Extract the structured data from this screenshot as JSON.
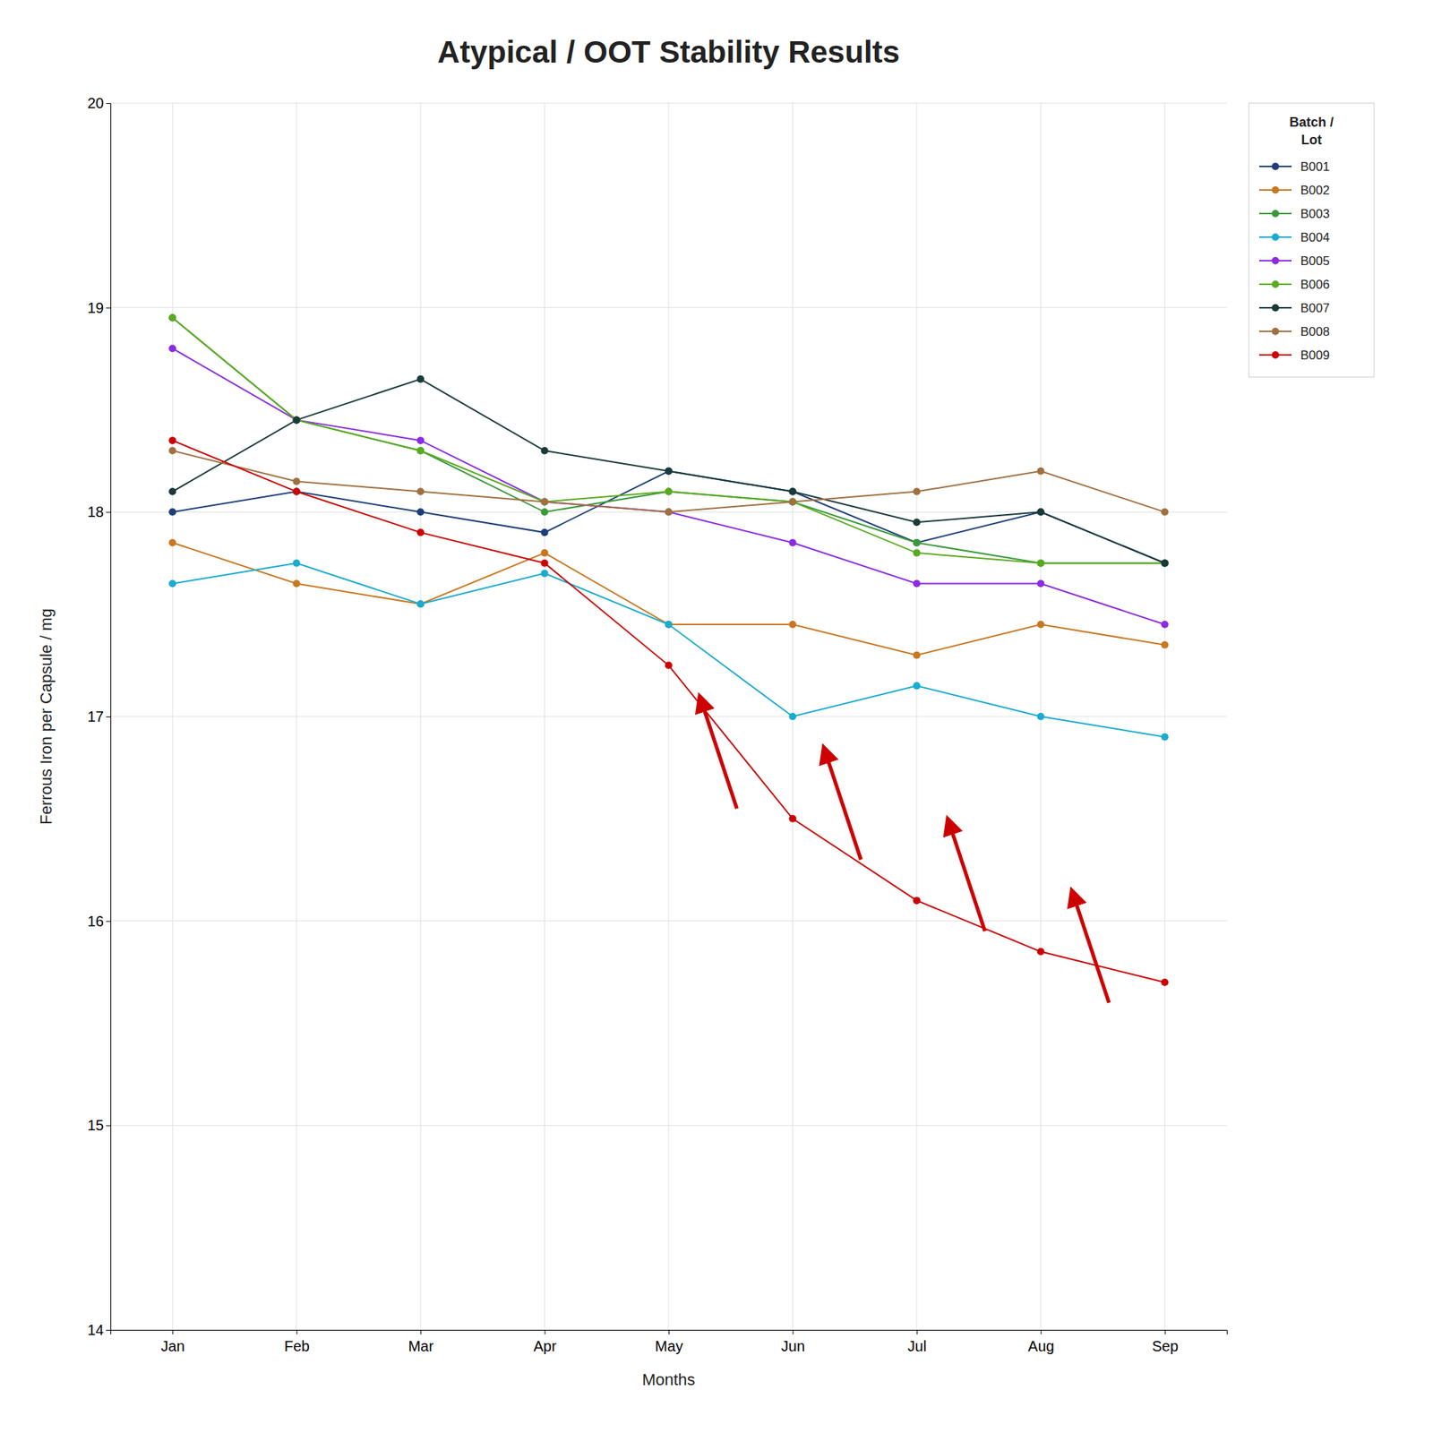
{
  "chart_data": {
    "type": "line",
    "title": "Atypical / OOT Stability Results",
    "xlabel": "Months",
    "ylabel": "Ferrous Iron per Capsule / mg",
    "categories": [
      "Jan",
      "Feb",
      "Mar",
      "Apr",
      "May",
      "Jun",
      "Jul",
      "Aug",
      "Sep"
    ],
    "ylim": [
      14,
      20
    ],
    "yticks": [
      14,
      15,
      16,
      17,
      18,
      19,
      20
    ],
    "grid": true,
    "legend": "right",
    "legend_title": "Batch /\nLot",
    "series": [
      {
        "name": "B001",
        "color": "#1c3f7a",
        "marker": "circle",
        "values": [
          18.0,
          18.1,
          18.0,
          17.9,
          18.2,
          18.1,
          17.85,
          18.0,
          17.75
        ]
      },
      {
        "name": "B002",
        "color": "#c87820",
        "marker": "circle",
        "values": [
          17.85,
          17.65,
          17.55,
          17.8,
          17.45,
          17.45,
          17.3,
          17.45,
          17.35
        ]
      },
      {
        "name": "B003",
        "color": "#3a9a3a",
        "marker": "circle",
        "values": [
          18.95,
          18.45,
          18.3,
          18.0,
          18.1,
          18.05,
          17.85,
          17.75,
          17.75
        ]
      },
      {
        "name": "B004",
        "color": "#1aabcf",
        "marker": "circle",
        "values": [
          17.65,
          17.75,
          17.55,
          17.7,
          17.45,
          17.0,
          17.15,
          17.0,
          16.9
        ]
      },
      {
        "name": "B005",
        "color": "#8b2be2",
        "marker": "circle",
        "values": [
          18.8,
          18.45,
          18.35,
          18.05,
          18.0,
          17.85,
          17.65,
          17.65,
          17.45
        ]
      },
      {
        "name": "B006",
        "color": "#5aaa20",
        "marker": "circle",
        "values": [
          18.95,
          18.45,
          18.3,
          18.05,
          18.1,
          18.05,
          17.8,
          17.75,
          17.75
        ]
      },
      {
        "name": "B007",
        "color": "#1a3a3a",
        "marker": "circle",
        "values": [
          18.1,
          18.45,
          18.65,
          18.3,
          18.2,
          18.1,
          17.95,
          18.0,
          17.75
        ]
      },
      {
        "name": "B008",
        "color": "#a07040",
        "marker": "circle",
        "values": [
          18.3,
          18.15,
          18.1,
          18.05,
          18.0,
          18.05,
          18.1,
          18.2,
          18.0
        ]
      },
      {
        "name": "B009",
        "color": "#cc0000",
        "marker": "circle",
        "values": [
          18.35,
          18.1,
          17.9,
          17.75,
          17.25,
          16.5,
          16.1,
          15.85,
          15.7
        ]
      }
    ],
    "annotations": [
      {
        "x": 4.55,
        "y": 16.55,
        "x_head": 4.25,
        "y_head": 17.1,
        "color": "#cc0000"
      },
      {
        "x": 5.55,
        "y": 16.3,
        "x_head": 5.25,
        "y_head": 16.85,
        "color": "#cc0000"
      },
      {
        "x": 6.55,
        "y": 15.95,
        "x_head": 6.25,
        "y_head": 16.5,
        "color": "#cc0000"
      },
      {
        "x": 7.55,
        "y": 15.6,
        "x_head": 7.25,
        "y_head": 16.15,
        "color": "#cc0000"
      }
    ]
  }
}
